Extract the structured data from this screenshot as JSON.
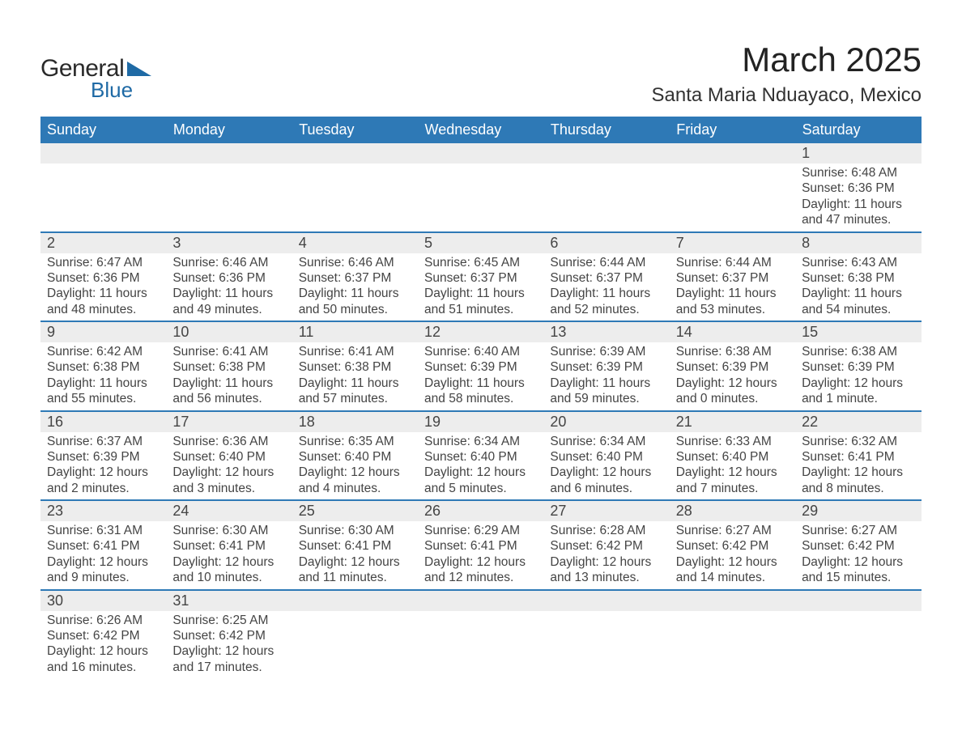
{
  "logo": {
    "word1": "General",
    "word2": "Blue",
    "tri_color": "#1f6aa5",
    "text_color_dark": "#2a2a2a"
  },
  "header": {
    "month_title": "March 2025",
    "location": "Santa Maria Nduayaco, Mexico"
  },
  "colors": {
    "header_bg": "#2e79b6",
    "header_fg": "#ffffff",
    "row_border": "#2e79b6",
    "daynum_bg": "#ededed",
    "text": "#444444",
    "page_bg": "#ffffff"
  },
  "typography": {
    "month_title_fontsize": 42,
    "location_fontsize": 24,
    "dayheader_fontsize": 18,
    "daynum_fontsize": 18,
    "body_fontsize": 15.5,
    "font_family": "Arial"
  },
  "calendar": {
    "day_headers": [
      "Sunday",
      "Monday",
      "Tuesday",
      "Wednesday",
      "Thursday",
      "Friday",
      "Saturday"
    ],
    "weeks": [
      [
        null,
        null,
        null,
        null,
        null,
        null,
        {
          "n": "1",
          "sunrise": "Sunrise: 6:48 AM",
          "sunset": "Sunset: 6:36 PM",
          "d1": "Daylight: 11 hours",
          "d2": "and 47 minutes."
        }
      ],
      [
        {
          "n": "2",
          "sunrise": "Sunrise: 6:47 AM",
          "sunset": "Sunset: 6:36 PM",
          "d1": "Daylight: 11 hours",
          "d2": "and 48 minutes."
        },
        {
          "n": "3",
          "sunrise": "Sunrise: 6:46 AM",
          "sunset": "Sunset: 6:36 PM",
          "d1": "Daylight: 11 hours",
          "d2": "and 49 minutes."
        },
        {
          "n": "4",
          "sunrise": "Sunrise: 6:46 AM",
          "sunset": "Sunset: 6:37 PM",
          "d1": "Daylight: 11 hours",
          "d2": "and 50 minutes."
        },
        {
          "n": "5",
          "sunrise": "Sunrise: 6:45 AM",
          "sunset": "Sunset: 6:37 PM",
          "d1": "Daylight: 11 hours",
          "d2": "and 51 minutes."
        },
        {
          "n": "6",
          "sunrise": "Sunrise: 6:44 AM",
          "sunset": "Sunset: 6:37 PM",
          "d1": "Daylight: 11 hours",
          "d2": "and 52 minutes."
        },
        {
          "n": "7",
          "sunrise": "Sunrise: 6:44 AM",
          "sunset": "Sunset: 6:37 PM",
          "d1": "Daylight: 11 hours",
          "d2": "and 53 minutes."
        },
        {
          "n": "8",
          "sunrise": "Sunrise: 6:43 AM",
          "sunset": "Sunset: 6:38 PM",
          "d1": "Daylight: 11 hours",
          "d2": "and 54 minutes."
        }
      ],
      [
        {
          "n": "9",
          "sunrise": "Sunrise: 6:42 AM",
          "sunset": "Sunset: 6:38 PM",
          "d1": "Daylight: 11 hours",
          "d2": "and 55 minutes."
        },
        {
          "n": "10",
          "sunrise": "Sunrise: 6:41 AM",
          "sunset": "Sunset: 6:38 PM",
          "d1": "Daylight: 11 hours",
          "d2": "and 56 minutes."
        },
        {
          "n": "11",
          "sunrise": "Sunrise: 6:41 AM",
          "sunset": "Sunset: 6:38 PM",
          "d1": "Daylight: 11 hours",
          "d2": "and 57 minutes."
        },
        {
          "n": "12",
          "sunrise": "Sunrise: 6:40 AM",
          "sunset": "Sunset: 6:39 PM",
          "d1": "Daylight: 11 hours",
          "d2": "and 58 minutes."
        },
        {
          "n": "13",
          "sunrise": "Sunrise: 6:39 AM",
          "sunset": "Sunset: 6:39 PM",
          "d1": "Daylight: 11 hours",
          "d2": "and 59 minutes."
        },
        {
          "n": "14",
          "sunrise": "Sunrise: 6:38 AM",
          "sunset": "Sunset: 6:39 PM",
          "d1": "Daylight: 12 hours",
          "d2": "and 0 minutes."
        },
        {
          "n": "15",
          "sunrise": "Sunrise: 6:38 AM",
          "sunset": "Sunset: 6:39 PM",
          "d1": "Daylight: 12 hours",
          "d2": "and 1 minute."
        }
      ],
      [
        {
          "n": "16",
          "sunrise": "Sunrise: 6:37 AM",
          "sunset": "Sunset: 6:39 PM",
          "d1": "Daylight: 12 hours",
          "d2": "and 2 minutes."
        },
        {
          "n": "17",
          "sunrise": "Sunrise: 6:36 AM",
          "sunset": "Sunset: 6:40 PM",
          "d1": "Daylight: 12 hours",
          "d2": "and 3 minutes."
        },
        {
          "n": "18",
          "sunrise": "Sunrise: 6:35 AM",
          "sunset": "Sunset: 6:40 PM",
          "d1": "Daylight: 12 hours",
          "d2": "and 4 minutes."
        },
        {
          "n": "19",
          "sunrise": "Sunrise: 6:34 AM",
          "sunset": "Sunset: 6:40 PM",
          "d1": "Daylight: 12 hours",
          "d2": "and 5 minutes."
        },
        {
          "n": "20",
          "sunrise": "Sunrise: 6:34 AM",
          "sunset": "Sunset: 6:40 PM",
          "d1": "Daylight: 12 hours",
          "d2": "and 6 minutes."
        },
        {
          "n": "21",
          "sunrise": "Sunrise: 6:33 AM",
          "sunset": "Sunset: 6:40 PM",
          "d1": "Daylight: 12 hours",
          "d2": "and 7 minutes."
        },
        {
          "n": "22",
          "sunrise": "Sunrise: 6:32 AM",
          "sunset": "Sunset: 6:41 PM",
          "d1": "Daylight: 12 hours",
          "d2": "and 8 minutes."
        }
      ],
      [
        {
          "n": "23",
          "sunrise": "Sunrise: 6:31 AM",
          "sunset": "Sunset: 6:41 PM",
          "d1": "Daylight: 12 hours",
          "d2": "and 9 minutes."
        },
        {
          "n": "24",
          "sunrise": "Sunrise: 6:30 AM",
          "sunset": "Sunset: 6:41 PM",
          "d1": "Daylight: 12 hours",
          "d2": "and 10 minutes."
        },
        {
          "n": "25",
          "sunrise": "Sunrise: 6:30 AM",
          "sunset": "Sunset: 6:41 PM",
          "d1": "Daylight: 12 hours",
          "d2": "and 11 minutes."
        },
        {
          "n": "26",
          "sunrise": "Sunrise: 6:29 AM",
          "sunset": "Sunset: 6:41 PM",
          "d1": "Daylight: 12 hours",
          "d2": "and 12 minutes."
        },
        {
          "n": "27",
          "sunrise": "Sunrise: 6:28 AM",
          "sunset": "Sunset: 6:42 PM",
          "d1": "Daylight: 12 hours",
          "d2": "and 13 minutes."
        },
        {
          "n": "28",
          "sunrise": "Sunrise: 6:27 AM",
          "sunset": "Sunset: 6:42 PM",
          "d1": "Daylight: 12 hours",
          "d2": "and 14 minutes."
        },
        {
          "n": "29",
          "sunrise": "Sunrise: 6:27 AM",
          "sunset": "Sunset: 6:42 PM",
          "d1": "Daylight: 12 hours",
          "d2": "and 15 minutes."
        }
      ],
      [
        {
          "n": "30",
          "sunrise": "Sunrise: 6:26 AM",
          "sunset": "Sunset: 6:42 PM",
          "d1": "Daylight: 12 hours",
          "d2": "and 16 minutes."
        },
        {
          "n": "31",
          "sunrise": "Sunrise: 6:25 AM",
          "sunset": "Sunset: 6:42 PM",
          "d1": "Daylight: 12 hours",
          "d2": "and 17 minutes."
        },
        null,
        null,
        null,
        null,
        null
      ]
    ]
  }
}
